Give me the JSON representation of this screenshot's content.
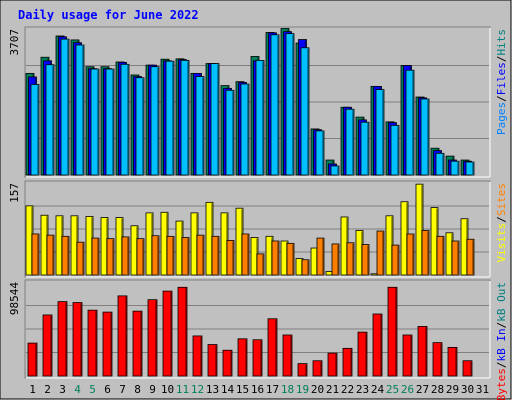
{
  "chart_data": {
    "type": "bar",
    "title": "Daily usage for June 2022",
    "x": [
      "1",
      "2",
      "3",
      "4",
      "5",
      "6",
      "7",
      "8",
      "9",
      "10",
      "11",
      "12",
      "13",
      "14",
      "15",
      "16",
      "17",
      "18",
      "19",
      "20",
      "21",
      "22",
      "23",
      "24",
      "25",
      "26",
      "27",
      "28",
      "29",
      "30",
      "31"
    ],
    "weekend_days": [
      "4",
      "5",
      "11",
      "12",
      "18",
      "19",
      "25",
      "26"
    ],
    "panels": [
      {
        "name": "traffic",
        "ymax_label": "3707",
        "ylim": [
          0,
          3707
        ],
        "right_label": [
          "Pages",
          "Files",
          "Hits"
        ],
        "right_label_colors": [
          "#0080ff",
          "#0000ff",
          "#008080"
        ],
        "series": [
          {
            "name": "Hits",
            "color": "#00805c",
            "values": [
              2580,
              2990,
              3530,
              3430,
              2750,
              2750,
              2870,
              2540,
              2790,
              2940,
              2950,
              2580,
              2830,
              2270,
              2370,
              3010,
              3620,
              3720,
              3350,
              1170,
              380,
              1720,
              1470,
              2250,
              1350,
              2780,
              1980,
              680,
              480,
              380,
              0
            ]
          },
          {
            "name": "Files",
            "color": "#0000ff",
            "values": [
              2490,
              2900,
              3510,
              3360,
              2700,
              2700,
              2860,
              2500,
              2790,
              2900,
              2930,
              2580,
              2830,
              2200,
              2350,
              2900,
              3610,
              3640,
              3440,
              1150,
              280,
              1720,
              1400,
              2250,
              1330,
              2780,
              1960,
              620,
              380,
              350,
              0
            ]
          },
          {
            "name": "Pages",
            "color": "#00c0ff",
            "values": [
              2300,
              2800,
              3450,
              3300,
              2690,
              2690,
              2810,
              2470,
              2750,
              2890,
              2910,
              2500,
              2830,
              2150,
              2310,
              2910,
              3560,
              3590,
              3230,
              1120,
              230,
              1670,
              1340,
              2170,
              1260,
              2660,
              1930,
              550,
              350,
              330,
              0
            ]
          }
        ]
      },
      {
        "name": "visits",
        "ymax_label": "157",
        "ylim": [
          0,
          157
        ],
        "right_label": [
          "Visits",
          "Sites"
        ],
        "right_label_colors": [
          "#ffff00",
          "#ff8000"
        ],
        "series": [
          {
            "name": "Visits",
            "color": "#ffff00",
            "values": [
              118,
              102,
              101,
              101,
              100,
              98,
              98,
              84,
              106,
              107,
              92,
              106,
              124,
              106,
              114,
              64,
              66,
              58,
              28,
              46,
              6,
              99,
              76,
              2,
              101,
              125,
              155,
              115,
              72,
              96,
              0
            ]
          },
          {
            "name": "Sites",
            "color": "#ff8000",
            "values": [
              70,
              68,
              66,
              56,
              63,
              62,
              65,
              62,
              67,
              66,
              64,
              68,
              66,
              59,
              70,
              36,
              58,
              54,
              26,
              63,
              53,
              55,
              52,
              75,
              51,
              70,
              76,
              66,
              58,
              61,
              0
            ]
          }
        ]
      },
      {
        "name": "kbytes",
        "ymax_label": "98544",
        "ylim": [
          0,
          98544
        ],
        "right_label": [
          "KBytes",
          "kB In",
          "kB Out"
        ],
        "right_label_colors": [
          "#ff0000",
          "#0000ff",
          "#008080"
        ],
        "series": [
          {
            "name": "KBytes",
            "color": "#ff0000",
            "values": [
              34500,
              64000,
              78000,
              77000,
              69000,
              67000,
              84000,
              68000,
              80000,
              89000,
              93000,
              42000,
              33000,
              27000,
              39000,
              38000,
              60000,
              43000,
              13000,
              16000,
              24000,
              29000,
              46000,
              65000,
              93000,
              43000,
              52000,
              35000,
              30000,
              16000,
              0
            ]
          }
        ]
      }
    ]
  }
}
